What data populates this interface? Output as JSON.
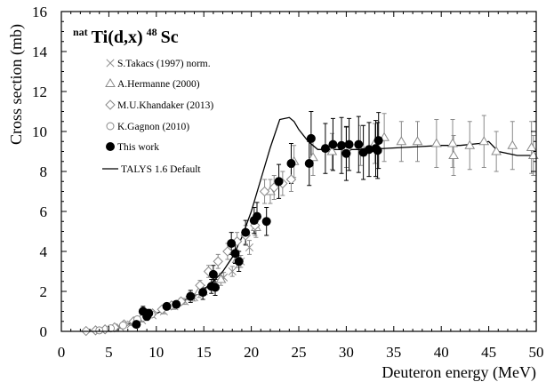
{
  "chart_data": {
    "type": "scatter",
    "title_prefix_sup": "nat",
    "title_main": "Ti(d,x)",
    "title_mass_sup": "48",
    "title_element": "Sc",
    "xlabel": "Deuteron energy (MeV)",
    "ylabel": "Cross section (mb)",
    "xlim": [
      0,
      50
    ],
    "ylim": [
      0,
      16
    ],
    "xticks": [
      "0",
      "5",
      "10",
      "15",
      "20",
      "25",
      "30",
      "35",
      "40",
      "45",
      "50"
    ],
    "yticks": [
      "0",
      "2",
      "4",
      "6",
      "8",
      "10",
      "12",
      "14",
      "16"
    ],
    "grid": false,
    "legend_position": "upper-left",
    "series": [
      {
        "name": "S.Takacs (1997) norm.",
        "marker": "x",
        "color": "#8a8a8a",
        "points": [
          [
            6.2,
            0.2
          ],
          [
            7.3,
            0.35
          ],
          [
            8.5,
            0.55
          ],
          [
            9.6,
            0.8
          ],
          [
            10.8,
            1.0
          ],
          [
            11.9,
            1.25
          ],
          [
            13.0,
            1.5
          ],
          [
            14.0,
            1.7
          ],
          [
            15.0,
            2.0
          ],
          [
            16.1,
            2.3
          ],
          [
            17.1,
            2.7
          ],
          [
            18.0,
            3.0
          ],
          [
            18.9,
            3.5
          ],
          [
            19.8,
            4.2
          ]
        ],
        "yerr": [
          0.05,
          0.05,
          0.08,
          0.1,
          0.12,
          0.15,
          0.15,
          0.18,
          0.2,
          0.2,
          0.25,
          0.25,
          0.3,
          0.35
        ]
      },
      {
        "name": "A.Hermanne (2000)",
        "marker": "triangle",
        "color": "#8a8a8a",
        "points": [
          [
            14.5,
            2.0
          ],
          [
            16.8,
            2.6
          ],
          [
            18.5,
            3.6
          ],
          [
            20.5,
            5.2
          ],
          [
            22.0,
            7.0
          ],
          [
            24.5,
            8.5
          ],
          [
            26.5,
            8.7
          ],
          [
            28.5,
            9.0
          ],
          [
            30.0,
            9.2
          ],
          [
            31.5,
            9.3
          ],
          [
            33.0,
            9.4
          ],
          [
            34.0,
            9.7
          ],
          [
            35.8,
            9.5
          ],
          [
            37.5,
            9.5
          ],
          [
            39.5,
            9.4
          ],
          [
            41.2,
            9.4
          ],
          [
            41.3,
            8.8
          ],
          [
            43.0,
            9.3
          ],
          [
            44.5,
            9.5
          ],
          [
            45.8,
            9.0
          ],
          [
            47.5,
            9.3
          ],
          [
            49.5,
            9.2
          ],
          [
            49.7,
            8.8
          ]
        ],
        "yerr": [
          0.3,
          0.3,
          0.4,
          0.5,
          0.6,
          0.8,
          0.9,
          0.9,
          1.0,
          1.0,
          1.0,
          1.2,
          1.0,
          1.0,
          1.2,
          1.2,
          1.0,
          1.2,
          1.3,
          1.0,
          1.2,
          1.3,
          1.0
        ]
      },
      {
        "name": "M.U.Khandaker (2013)",
        "marker": "diamond",
        "color": "#8a8a8a",
        "points": [
          [
            2.6,
            0.02
          ],
          [
            3.6,
            0.05
          ],
          [
            4.6,
            0.1
          ],
          [
            5.6,
            0.2
          ],
          [
            6.6,
            0.35
          ],
          [
            7.6,
            0.5
          ],
          [
            8.6,
            0.7
          ],
          [
            9.6,
            0.9
          ],
          [
            10.6,
            1.1
          ],
          [
            11.6,
            1.3
          ],
          [
            12.6,
            1.5
          ],
          [
            13.6,
            1.75
          ],
          [
            14.6,
            2.3
          ],
          [
            15.5,
            3.0
          ],
          [
            16.5,
            3.5
          ],
          [
            17.5,
            4.0
          ],
          [
            18.5,
            4.5
          ],
          [
            19.4,
            4.8
          ],
          [
            20.4,
            5.3
          ],
          [
            21.4,
            7.0
          ],
          [
            22.4,
            7.2
          ],
          [
            23.3,
            7.4
          ],
          [
            24.2,
            7.6
          ]
        ],
        "yerr": [
          0.01,
          0.02,
          0.03,
          0.04,
          0.05,
          0.06,
          0.08,
          0.1,
          0.1,
          0.12,
          0.15,
          0.2,
          0.25,
          0.3,
          0.35,
          0.4,
          0.45,
          0.5,
          0.5,
          0.6,
          0.6,
          0.6,
          0.6
        ]
      },
      {
        "name": "K.Gagnon (2010)",
        "marker": "circle-open",
        "color": "#8a8a8a",
        "points": [
          [
            4.0,
            0.05
          ],
          [
            5.2,
            0.15
          ],
          [
            6.5,
            0.3
          ],
          [
            8.0,
            0.6
          ],
          [
            9.5,
            0.85
          ]
        ],
        "yerr": [
          0.02,
          0.03,
          0.05,
          0.08,
          0.1
        ]
      },
      {
        "name": "This work",
        "marker": "circle-filled",
        "color": "#000000",
        "points": [
          [
            7.9,
            0.35
          ],
          [
            8.6,
            1.0
          ],
          [
            9.0,
            0.75
          ],
          [
            9.2,
            0.9
          ],
          [
            11.1,
            1.25
          ],
          [
            12.1,
            1.35
          ],
          [
            13.6,
            1.75
          ],
          [
            14.9,
            1.95
          ],
          [
            15.8,
            2.25
          ],
          [
            16.0,
            2.85
          ],
          [
            16.2,
            2.2
          ],
          [
            17.9,
            4.4
          ],
          [
            18.3,
            3.9
          ],
          [
            18.7,
            3.5
          ],
          [
            19.4,
            4.95
          ],
          [
            20.3,
            5.55
          ],
          [
            20.6,
            5.75
          ],
          [
            21.6,
            5.5
          ],
          [
            22.9,
            7.5
          ],
          [
            24.2,
            8.4
          ],
          [
            26.1,
            8.4
          ],
          [
            26.3,
            9.65
          ],
          [
            27.8,
            9.15
          ],
          [
            28.6,
            9.35
          ],
          [
            29.5,
            9.3
          ],
          [
            30.0,
            8.9
          ],
          [
            30.3,
            9.35
          ],
          [
            31.3,
            9.35
          ],
          [
            31.8,
            8.95
          ],
          [
            32.4,
            9.1
          ],
          [
            33.1,
            9.15
          ],
          [
            33.3,
            9.05
          ],
          [
            33.4,
            9.55
          ]
        ],
        "yerr": [
          0.08,
          0.25,
          0.2,
          0.2,
          0.15,
          0.15,
          0.3,
          0.35,
          0.35,
          0.45,
          0.4,
          0.55,
          0.5,
          0.5,
          0.6,
          0.65,
          0.7,
          0.7,
          0.85,
          1.0,
          1.1,
          1.35,
          1.25,
          1.3,
          1.4,
          1.35,
          1.3,
          1.4,
          1.35,
          1.35,
          1.4,
          1.4,
          1.4
        ]
      }
    ],
    "curve": {
      "name": "TALYS 1.6 Default",
      "color": "#000000",
      "x": [
        4,
        6,
        8,
        10,
        12,
        14,
        15,
        16,
        17,
        18,
        19,
        20,
        21,
        22,
        23,
        24,
        24.5,
        25,
        26,
        27,
        28,
        30,
        32,
        34,
        36,
        38,
        40,
        42,
        44,
        45,
        46,
        48,
        50
      ],
      "y": [
        0.05,
        0.2,
        0.5,
        0.9,
        1.3,
        1.8,
        2.1,
        2.5,
        3.0,
        3.7,
        4.7,
        6.0,
        7.6,
        9.2,
        10.6,
        10.7,
        10.5,
        10.1,
        9.5,
        9.1,
        9.1,
        9.1,
        9.1,
        9.15,
        9.2,
        9.25,
        9.3,
        9.3,
        9.4,
        9.5,
        9.0,
        8.8,
        8.8
      ]
    }
  }
}
